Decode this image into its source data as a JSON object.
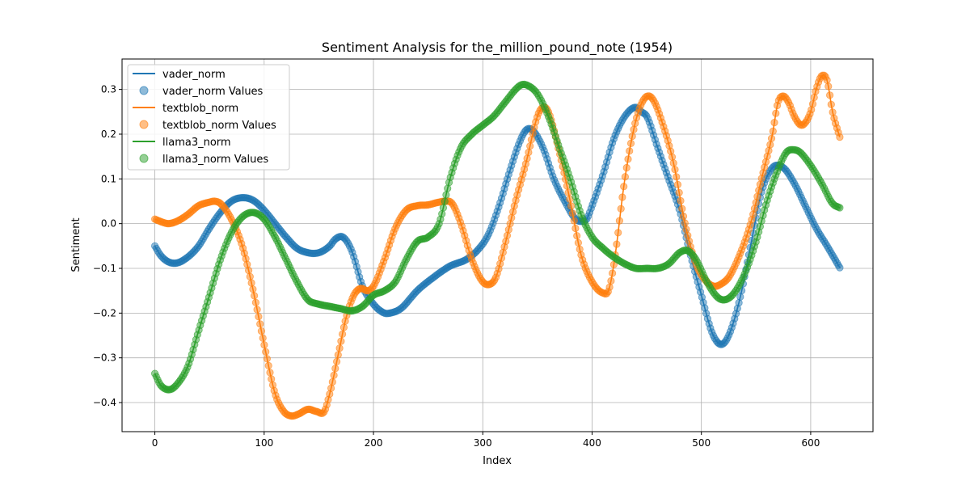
{
  "chart_data": {
    "type": "line",
    "title": "Sentiment Analysis for the_million_pound_note (1954)",
    "xlabel": "Index",
    "ylabel": "Sentiment",
    "xlim": [
      -30,
      657
    ],
    "ylim": [
      -0.465,
      0.368
    ],
    "xticks": [
      0,
      100,
      200,
      300,
      400,
      500,
      600
    ],
    "yticks": [
      -0.4,
      -0.3,
      -0.2,
      -0.1,
      0.0,
      0.1,
      0.2,
      0.3
    ],
    "xtick_labels": [
      "0",
      "100",
      "200",
      "300",
      "400",
      "500",
      "600"
    ],
    "ytick_labels": [
      "−0.4",
      "−0.3",
      "−0.2",
      "−0.1",
      "0.0",
      "0.1",
      "0.2",
      "0.3"
    ],
    "grid": true,
    "legend_position": "top-left",
    "series": [
      {
        "name": "vader_norm",
        "values_label": "vader_norm Values",
        "color": "#1f77b4",
        "x": [
          0,
          5,
          12,
          20,
          30,
          40,
          50,
          60,
          70,
          80,
          90,
          100,
          110,
          120,
          130,
          140,
          150,
          160,
          165,
          172,
          180,
          190,
          200,
          210,
          215,
          225,
          240,
          255,
          270,
          285,
          295,
          305,
          315,
          325,
          335,
          340,
          345,
          355,
          365,
          375,
          385,
          390,
          395,
          400,
          410,
          420,
          430,
          440,
          445,
          450,
          460,
          470,
          480,
          490,
          500,
          510,
          518,
          525,
          535,
          545,
          555,
          565,
          575,
          585,
          595,
          605,
          615,
          627
        ],
        "y": [
          -0.05,
          -0.07,
          -0.085,
          -0.088,
          -0.075,
          -0.05,
          -0.01,
          0.025,
          0.05,
          0.058,
          0.052,
          0.03,
          0.0,
          -0.03,
          -0.055,
          -0.065,
          -0.065,
          -0.05,
          -0.035,
          -0.03,
          -0.06,
          -0.14,
          -0.18,
          -0.2,
          -0.2,
          -0.19,
          -0.15,
          -0.12,
          -0.095,
          -0.08,
          -0.06,
          -0.025,
          0.04,
          0.12,
          0.19,
          0.21,
          0.21,
          0.17,
          0.1,
          0.05,
          0.01,
          0.005,
          0.01,
          0.04,
          0.11,
          0.19,
          0.24,
          0.26,
          0.25,
          0.24,
          0.17,
          0.1,
          0.03,
          -0.07,
          -0.16,
          -0.245,
          -0.27,
          -0.25,
          -0.17,
          -0.05,
          0.07,
          0.125,
          0.125,
          0.09,
          0.04,
          -0.01,
          -0.05,
          -0.1
        ]
      },
      {
        "name": "textblob_norm",
        "values_label": "textblob_norm Values",
        "color": "#ff7f0e",
        "x": [
          0,
          5,
          12,
          20,
          30,
          40,
          50,
          55,
          60,
          70,
          80,
          90,
          100,
          110,
          118,
          125,
          132,
          140,
          148,
          155,
          160,
          168,
          175,
          182,
          188,
          195,
          200,
          210,
          220,
          230,
          240,
          250,
          260,
          265,
          272,
          280,
          290,
          300,
          307,
          312,
          320,
          330,
          340,
          350,
          355,
          360,
          370,
          380,
          390,
          400,
          410,
          415,
          420,
          430,
          440,
          448,
          455,
          465,
          475,
          485,
          495,
          505,
          512,
          518,
          525,
          535,
          545,
          555,
          565,
          570,
          575,
          580,
          585,
          592,
          600,
          605,
          610,
          615,
          620,
          627
        ],
        "y": [
          0.01,
          0.005,
          0.0,
          0.005,
          0.02,
          0.04,
          0.048,
          0.05,
          0.045,
          0.01,
          -0.05,
          -0.15,
          -0.27,
          -0.38,
          -0.42,
          -0.43,
          -0.425,
          -0.415,
          -0.42,
          -0.42,
          -0.38,
          -0.29,
          -0.21,
          -0.16,
          -0.145,
          -0.15,
          -0.14,
          -0.08,
          -0.01,
          0.03,
          0.04,
          0.042,
          0.048,
          0.05,
          0.045,
          0.0,
          -0.08,
          -0.13,
          -0.135,
          -0.12,
          -0.05,
          0.05,
          0.14,
          0.24,
          0.26,
          0.25,
          0.16,
          0.05,
          -0.07,
          -0.13,
          -0.155,
          -0.15,
          -0.09,
          0.1,
          0.23,
          0.28,
          0.28,
          0.22,
          0.13,
          0.0,
          -0.09,
          -0.13,
          -0.14,
          -0.135,
          -0.12,
          -0.07,
          0.0,
          0.1,
          0.2,
          0.27,
          0.285,
          0.27,
          0.24,
          0.22,
          0.25,
          0.3,
          0.33,
          0.32,
          0.25,
          0.19
        ]
      },
      {
        "name": "llama3_norm",
        "values_label": "llama3_norm Values",
        "color": "#2ca02c",
        "x": [
          0,
          5,
          10,
          15,
          20,
          30,
          40,
          50,
          60,
          70,
          80,
          90,
          100,
          110,
          120,
          130,
          140,
          150,
          160,
          170,
          180,
          190,
          200,
          210,
          220,
          230,
          240,
          250,
          260,
          270,
          280,
          290,
          300,
          310,
          320,
          330,
          335,
          340,
          350,
          360,
          370,
          380,
          390,
          400,
          410,
          420,
          430,
          440,
          450,
          460,
          470,
          480,
          487,
          495,
          505,
          515,
          522,
          530,
          540,
          550,
          560,
          570,
          578,
          585,
          590,
          600,
          610,
          620,
          627
        ],
        "y": [
          -0.335,
          -0.36,
          -0.37,
          -0.37,
          -0.36,
          -0.32,
          -0.24,
          -0.16,
          -0.08,
          -0.02,
          0.015,
          0.025,
          0.01,
          -0.03,
          -0.08,
          -0.13,
          -0.17,
          -0.18,
          -0.185,
          -0.19,
          -0.195,
          -0.185,
          -0.16,
          -0.15,
          -0.13,
          -0.08,
          -0.04,
          -0.03,
          0.0,
          0.1,
          0.17,
          0.2,
          0.22,
          0.24,
          0.27,
          0.3,
          0.31,
          0.31,
          0.29,
          0.24,
          0.17,
          0.1,
          0.02,
          -0.03,
          -0.055,
          -0.075,
          -0.09,
          -0.1,
          -0.1,
          -0.1,
          -0.09,
          -0.065,
          -0.06,
          -0.08,
          -0.13,
          -0.165,
          -0.17,
          -0.155,
          -0.11,
          -0.04,
          0.05,
          0.12,
          0.16,
          0.165,
          0.16,
          0.13,
          0.09,
          0.045,
          0.035
        ]
      }
    ]
  }
}
